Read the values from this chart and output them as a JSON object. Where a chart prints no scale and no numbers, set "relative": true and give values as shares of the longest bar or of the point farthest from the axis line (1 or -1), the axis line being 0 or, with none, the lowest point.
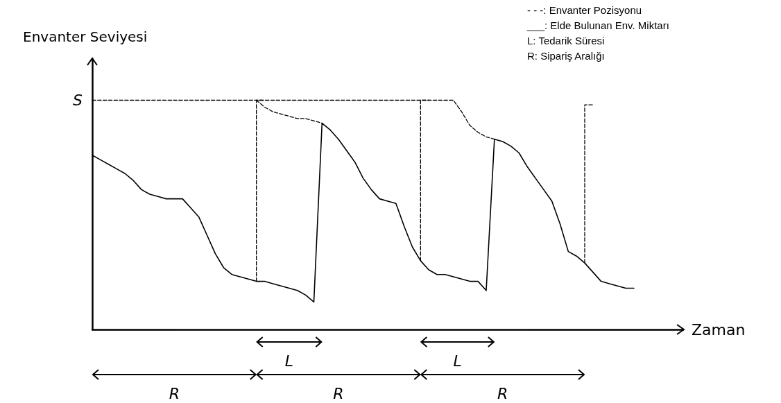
{
  "chart_data": {
    "type": "line",
    "relative": true,
    "xlabel": "Zaman",
    "ylabel": "Envanter Seviyesi",
    "grid": false,
    "marker": "none",
    "categories": [
      null,
      null,
      null,
      null,
      null,
      null,
      null,
      null,
      null,
      null,
      null,
      null,
      null,
      null,
      null,
      null,
      null,
      null,
      null,
      null,
      null,
      null,
      null,
      null,
      null,
      null,
      null,
      null,
      null,
      null,
      null,
      null,
      null,
      null,
      null,
      null,
      null,
      null,
      null,
      null,
      null,
      null,
      null,
      null,
      null,
      null,
      null,
      null,
      null,
      null,
      null,
      null,
      null,
      null,
      null,
      null,
      null,
      null,
      null,
      null,
      null,
      null,
      null,
      null,
      null,
      null,
      null,
      null,
      null,
      null,
      null,
      null,
      null
    ],
    "series": [
      {
        "color": "#000000",
        "line_style": "solid",
        "values": [
          0.76,
          0.74,
          0.72,
          0.7,
          0.68,
          0.65,
          0.61,
          0.59,
          0.58,
          0.57,
          0.57,
          0.57,
          0.53,
          0.49,
          0.41,
          0.33,
          0.27,
          0.24,
          0.23,
          0.22,
          0.21,
          0.21,
          0.2,
          0.19,
          0.18,
          0.17,
          0.15,
          0.12,
          0.9,
          0.87,
          0.83,
          0.78,
          0.73,
          0.66,
          0.61,
          0.57,
          0.56,
          0.55,
          0.45,
          0.36,
          0.3,
          0.26,
          0.24,
          0.24,
          0.23,
          0.22,
          0.21,
          0.21,
          0.17,
          0.83,
          0.82,
          0.8,
          0.77,
          0.71,
          0.66,
          0.61,
          0.56,
          0.46,
          0.34,
          0.32,
          0.29,
          0.25,
          0.21,
          0.2,
          0.19,
          0.18,
          0.18,
          null,
          null,
          null,
          null,
          null,
          null
        ]
      },
      {
        "color": "#000000",
        "line_style": "dashed",
        "values": [
          1,
          1,
          1,
          1,
          1,
          1,
          1,
          1,
          1,
          1,
          1,
          1,
          1,
          1,
          1,
          1,
          1,
          1,
          1,
          1,
          1,
          1,
          1,
          1,
          1,
          1,
          1,
          1,
          1,
          1,
          1,
          1,
          1,
          1,
          1,
          1,
          1,
          1,
          1,
          1,
          1,
          1,
          1,
          1,
          1,
          0.95,
          0.89,
          0.86,
          0.84,
          0.83,
          null,
          null,
          null,
          null,
          null,
          null,
          null,
          null,
          null,
          null,
          null,
          null,
          null,
          null,
          null,
          null,
          null,
          null,
          null,
          null,
          null,
          null,
          null
        ]
      },
      {
        "color": "#000000",
        "line_style": "dashed",
        "values": [
          null,
          null,
          null,
          null,
          null,
          null,
          null,
          null,
          null,
          null,
          null,
          null,
          null,
          null,
          null,
          null,
          null,
          null,
          null,
          null,
          1,
          0.97,
          0.95,
          0.94,
          0.93,
          0.92,
          0.92,
          0.91,
          0.9,
          null,
          null,
          null,
          null,
          null,
          null,
          null,
          null,
          null,
          null,
          null,
          null,
          null,
          null,
          null,
          null,
          null,
          null,
          null,
          null,
          null,
          null,
          null,
          null,
          null,
          null,
          null,
          null,
          null,
          null,
          null,
          null,
          null,
          null,
          null,
          null,
          null,
          null,
          null,
          null,
          null,
          null,
          null,
          null
        ]
      },
      {
        "type": "step",
        "color": "#000000",
        "line_style": "dashed",
        "values": [
          null,
          null,
          null,
          null,
          null,
          null,
          null,
          null,
          null,
          null,
          null,
          null,
          null,
          null,
          null,
          null,
          null,
          null,
          null,
          null,
          0.21,
          1,
          null,
          null,
          null,
          null,
          null,
          null,
          null,
          null,
          null,
          null,
          null,
          null,
          null,
          null,
          null,
          null,
          null,
          null,
          0.3,
          1,
          null,
          null,
          null,
          null,
          null,
          null,
          null,
          null,
          null,
          null,
          null,
          null,
          null,
          null,
          null,
          null,
          null,
          null,
          0.29,
          0.98,
          null,
          null,
          null,
          null,
          null,
          null,
          null,
          null,
          null,
          null,
          null
        ]
      }
    ],
    "annotations": [
      "S",
      "L",
      "L",
      "R",
      "R",
      "R",
      "- - -: Envanter Pozisyonu",
      "___: Elde Bulunan Env. Miktarı",
      "L: Tedarik Süresi",
      "R: Sipariş Aralığı"
    ]
  }
}
